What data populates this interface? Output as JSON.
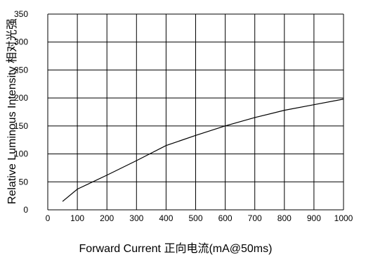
{
  "chart_data": {
    "type": "line",
    "xlabel": "Forward Current 正向电流(mA@50ms)",
    "ylabel": "Relative Luminous Intensity 相对光强",
    "xlim": [
      0,
      1000
    ],
    "ylim": [
      0,
      350
    ],
    "x_ticks": [
      "0",
      "100",
      "200",
      "300",
      "400",
      "500",
      "600",
      "700",
      "800",
      "900",
      "1000"
    ],
    "y_ticks": [
      "0",
      "50",
      "100",
      "150",
      "200",
      "250",
      "300",
      "350"
    ],
    "grid": true,
    "series": [
      {
        "x": [
          50,
          100,
          200,
          300,
          400,
          500,
          600,
          700,
          800,
          900,
          1000
        ],
        "y": [
          15,
          37,
          62,
          88,
          115,
          133,
          150,
          165,
          178,
          188,
          198
        ]
      }
    ],
    "line_color": "#000000"
  }
}
